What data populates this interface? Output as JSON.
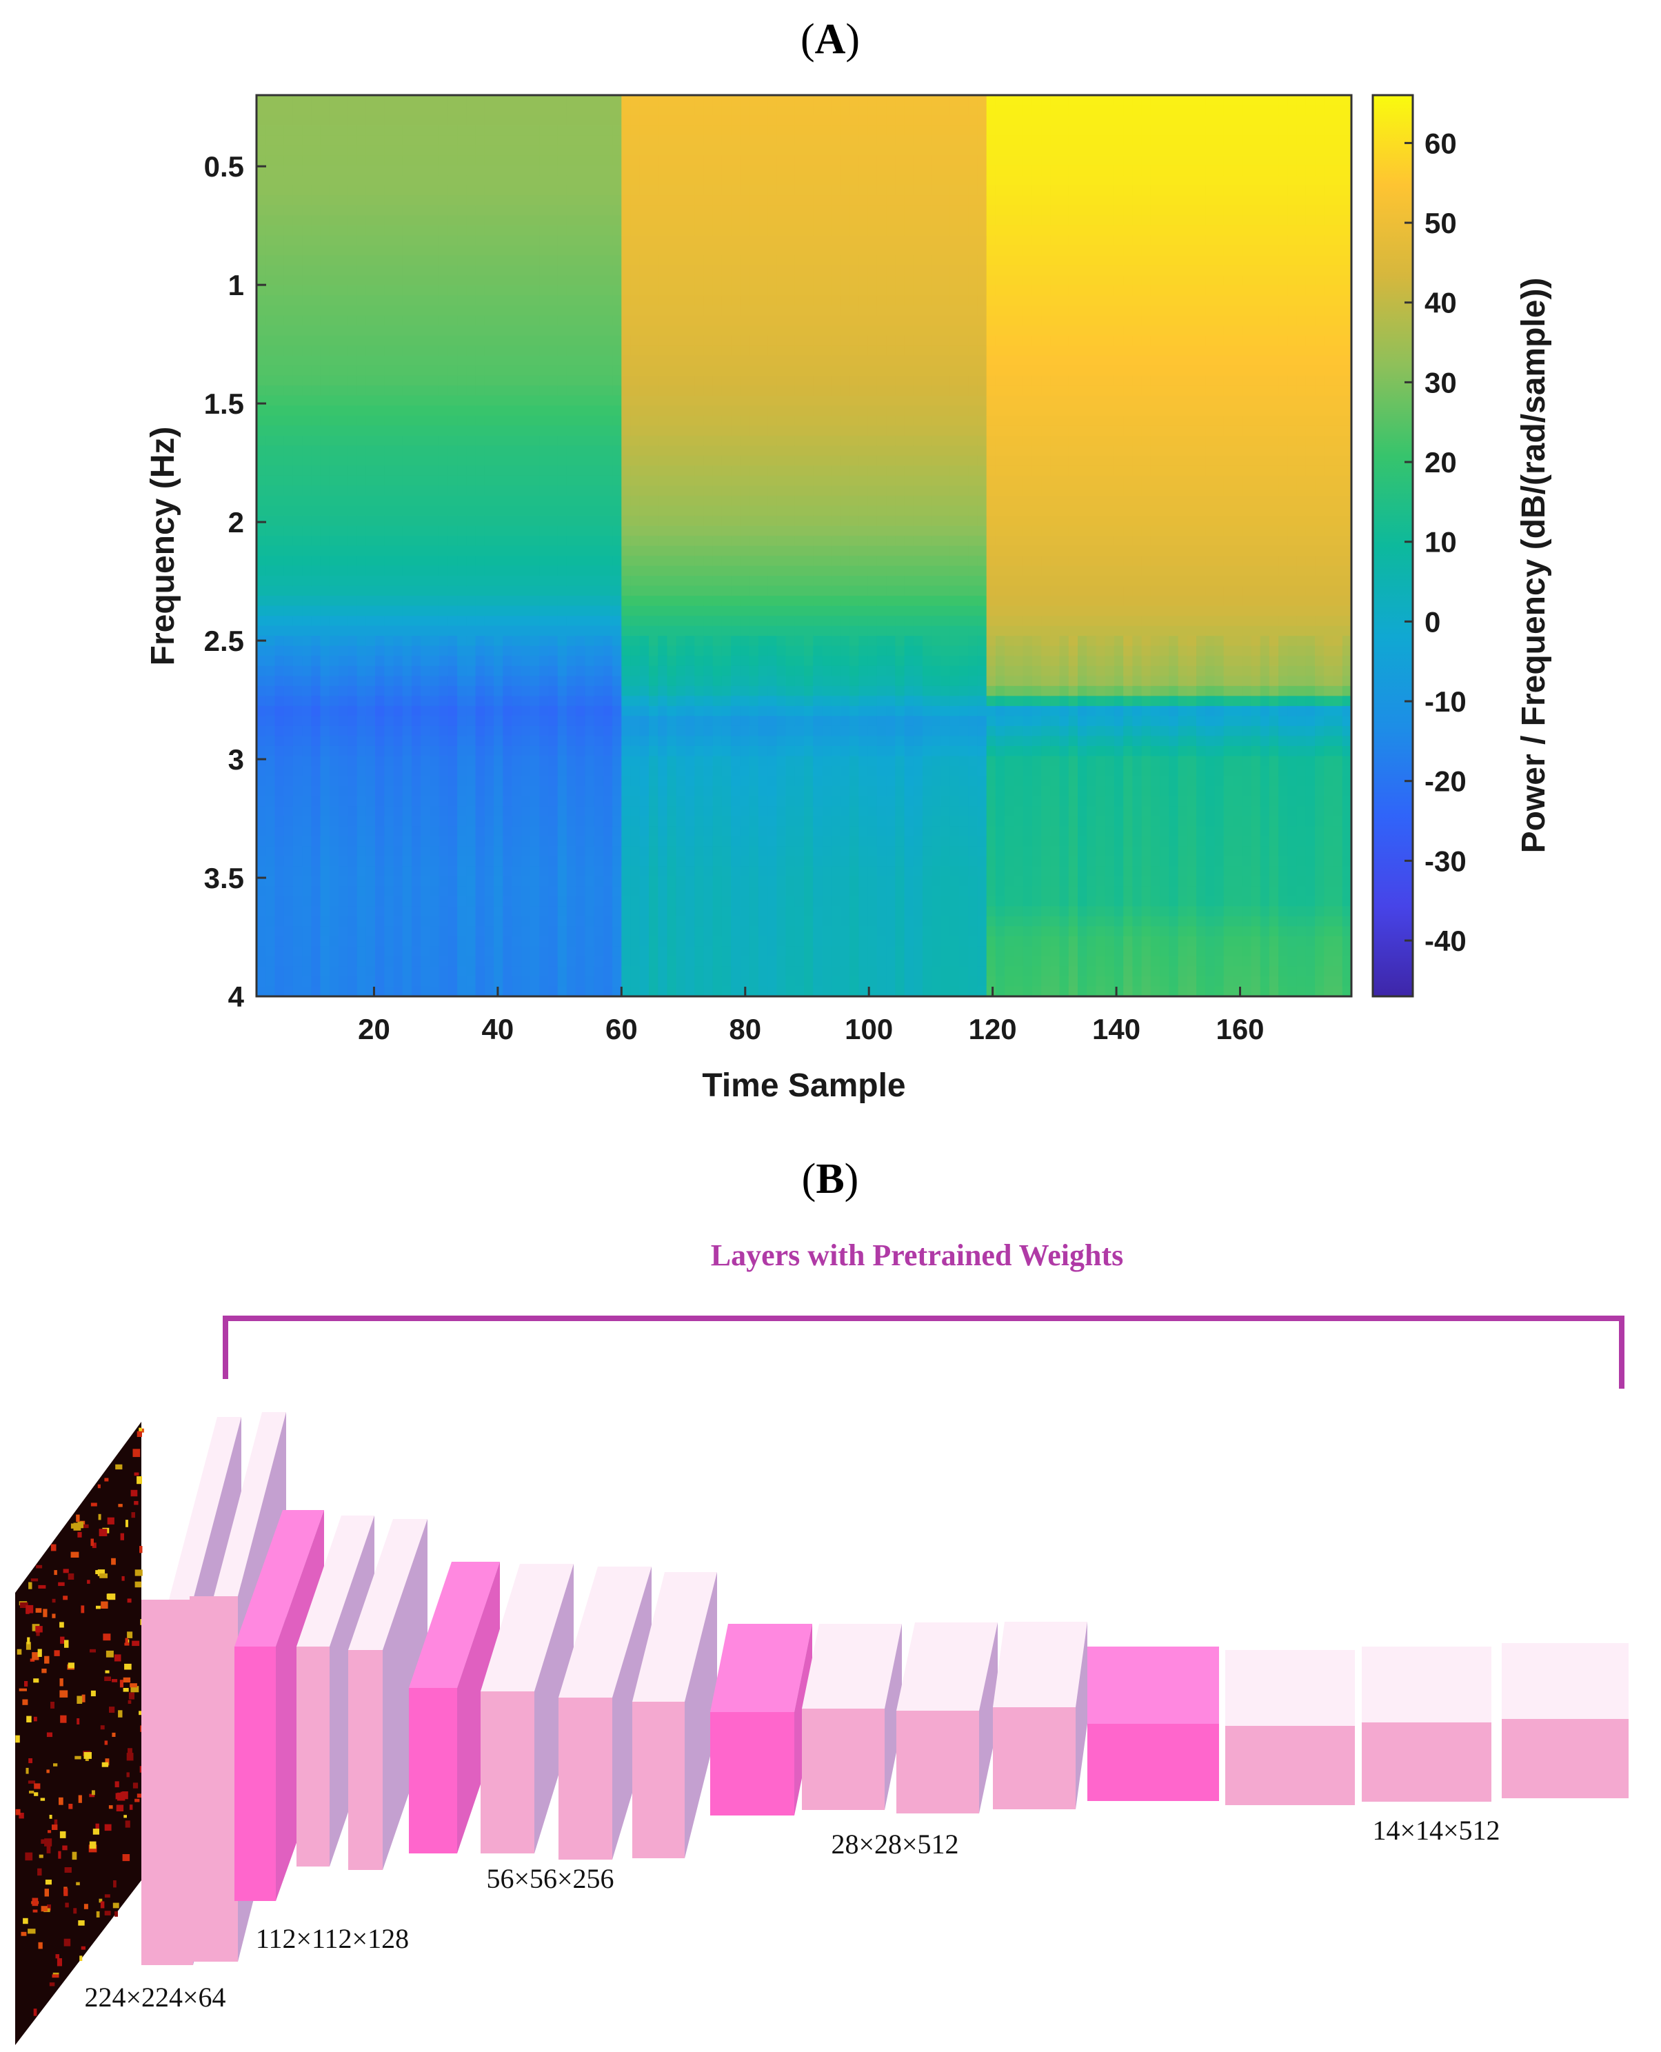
{
  "panel_a": {
    "label_open": "(",
    "label_letter": "A",
    "label_close": ")"
  },
  "panel_b": {
    "label_open": "(",
    "label_letter": "B",
    "label_close": ")",
    "bracket_label": "Layers with Pretrained Weights",
    "dimension_labels": [
      "224×224×64",
      "112×112×128",
      "56×56×256",
      "28×28×512",
      "14×14×512"
    ],
    "colors": {
      "pool": "#ff66cc",
      "conv": "#f4a9d0",
      "conv_top": "#fdeef8",
      "side": "#c4a0d0",
      "bracket": "#b03aa6"
    }
  },
  "chart_data": {
    "type": "heatmap",
    "title": "",
    "xlabel": "Time Sample",
    "ylabel": "Frequency (Hz)",
    "colorbar_label": "Power / Frequency (dB/(rad/sample))",
    "x_range": [
      1,
      178
    ],
    "y_range": [
      0.2,
      4
    ],
    "y_reversed": true,
    "x_ticks": [
      "20",
      "40",
      "60",
      "80",
      "100",
      "120",
      "140",
      "160"
    ],
    "x_tick_values": [
      20,
      40,
      60,
      80,
      100,
      120,
      140,
      160
    ],
    "y_ticks": [
      "0.5",
      "1",
      "1.5",
      "2",
      "2.5",
      "3",
      "3.5",
      "4"
    ],
    "y_tick_values": [
      0.5,
      1,
      1.5,
      2,
      2.5,
      3,
      3.5,
      4
    ],
    "colorbar_range": [
      -47,
      66
    ],
    "colorbar_ticks": [
      "60",
      "50",
      "40",
      "30",
      "20",
      "10",
      "0",
      "-10",
      "-20",
      "-30",
      "-40"
    ],
    "colorbar_tick_values": [
      60,
      50,
      40,
      30,
      20,
      10,
      0,
      -10,
      -20,
      -30,
      -40
    ],
    "colormap": "parula",
    "segments": [
      {
        "x_start": 1,
        "x_end": 60,
        "profile": [
          [
            0.2,
            33
          ],
          [
            0.6,
            32
          ],
          [
            1.0,
            28
          ],
          [
            1.4,
            24
          ],
          [
            1.7,
            17
          ],
          [
            2.0,
            13
          ],
          [
            2.3,
            6
          ],
          [
            2.55,
            -12
          ],
          [
            2.8,
            -22
          ],
          [
            3.0,
            -18
          ],
          [
            3.5,
            -15
          ],
          [
            4.0,
            -16
          ]
        ]
      },
      {
        "x_start": 60,
        "x_end": 119,
        "profile": [
          [
            0.2,
            52
          ],
          [
            0.8,
            49
          ],
          [
            1.2,
            46
          ],
          [
            1.6,
            41
          ],
          [
            2.0,
            33
          ],
          [
            2.3,
            23
          ],
          [
            2.5,
            12
          ],
          [
            2.7,
            6
          ],
          [
            2.85,
            -9
          ],
          [
            3.0,
            -1
          ],
          [
            3.5,
            3
          ],
          [
            4.0,
            4
          ]
        ]
      },
      {
        "x_start": 119,
        "x_end": 178,
        "profile": [
          [
            0.2,
            64
          ],
          [
            0.6,
            62
          ],
          [
            1.0,
            58
          ],
          [
            1.5,
            53
          ],
          [
            2.0,
            48
          ],
          [
            2.4,
            42
          ],
          [
            2.7,
            33
          ],
          [
            2.8,
            -4
          ],
          [
            3.0,
            12
          ],
          [
            3.6,
            14
          ],
          [
            3.75,
            20
          ],
          [
            4.0,
            22
          ]
        ]
      }
    ]
  }
}
